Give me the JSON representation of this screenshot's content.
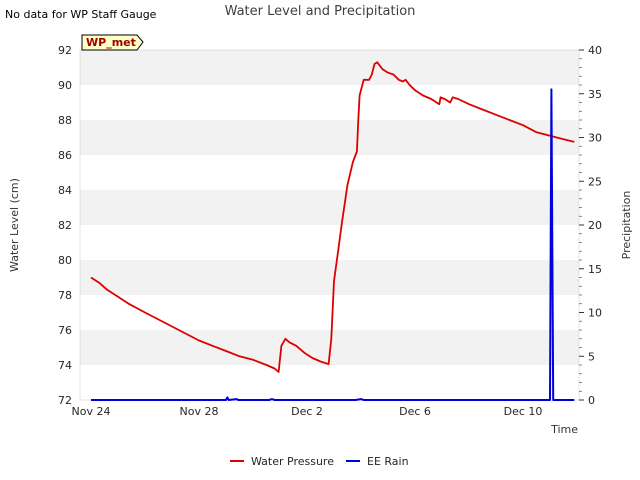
{
  "chart_data": {
    "type": "line",
    "title": "Water Level and Precipitation",
    "note": "No data for WP Staff Gauge",
    "station_label": "WP_met",
    "xlabel": "Time",
    "ylabel_left": "Water Level (cm)",
    "ylabel_right": "Precipitation",
    "x_ticks": [
      {
        "day": 0,
        "label": "Nov 24"
      },
      {
        "day": 4,
        "label": "Nov 28"
      },
      {
        "day": 8,
        "label": "Dec 2"
      },
      {
        "day": 12,
        "label": "Dec 6"
      },
      {
        "day": 16,
        "label": "Dec 10"
      }
    ],
    "x_range_days": [
      0,
      17.9
    ],
    "ylim_left": [
      72,
      92
    ],
    "left_ticks": [
      72,
      74,
      76,
      78,
      80,
      82,
      84,
      86,
      88,
      90,
      92
    ],
    "ylim_right": [
      0,
      40
    ],
    "right_ticks": [
      0,
      5,
      10,
      15,
      20,
      25,
      30,
      35,
      40
    ],
    "grid_bands": true,
    "legend_position": "bottom-center",
    "series": [
      {
        "name": "Water Pressure",
        "axis": "left",
        "color": "#dd0000",
        "points": [
          [
            0.0,
            79.0
          ],
          [
            0.3,
            78.7
          ],
          [
            0.6,
            78.3
          ],
          [
            1.0,
            77.9
          ],
          [
            1.4,
            77.5
          ],
          [
            2.0,
            77.0
          ],
          [
            2.5,
            76.6
          ],
          [
            3.0,
            76.2
          ],
          [
            3.5,
            75.8
          ],
          [
            4.0,
            75.4
          ],
          [
            4.5,
            75.1
          ],
          [
            5.0,
            74.8
          ],
          [
            5.5,
            74.5
          ],
          [
            6.0,
            74.3
          ],
          [
            6.5,
            74.0
          ],
          [
            6.8,
            73.8
          ],
          [
            6.95,
            73.6
          ],
          [
            7.05,
            75.1
          ],
          [
            7.2,
            75.5
          ],
          [
            7.35,
            75.3
          ],
          [
            7.6,
            75.1
          ],
          [
            7.9,
            74.7
          ],
          [
            8.2,
            74.4
          ],
          [
            8.5,
            74.2
          ],
          [
            8.7,
            74.1
          ],
          [
            8.8,
            74.05
          ],
          [
            8.9,
            75.5
          ],
          [
            9.0,
            78.8
          ],
          [
            9.15,
            80.5
          ],
          [
            9.3,
            82.2
          ],
          [
            9.5,
            84.3
          ],
          [
            9.7,
            85.6
          ],
          [
            9.85,
            86.2
          ],
          [
            9.9,
            88.0
          ],
          [
            9.95,
            89.4
          ],
          [
            10.1,
            90.3
          ],
          [
            10.3,
            90.3
          ],
          [
            10.4,
            90.6
          ],
          [
            10.5,
            91.2
          ],
          [
            10.6,
            91.3
          ],
          [
            10.8,
            90.9
          ],
          [
            11.0,
            90.7
          ],
          [
            11.2,
            90.6
          ],
          [
            11.4,
            90.3
          ],
          [
            11.55,
            90.2
          ],
          [
            11.65,
            90.3
          ],
          [
            11.8,
            90.0
          ],
          [
            12.0,
            89.7
          ],
          [
            12.3,
            89.4
          ],
          [
            12.6,
            89.2
          ],
          [
            12.9,
            88.9
          ],
          [
            12.95,
            89.3
          ],
          [
            13.1,
            89.2
          ],
          [
            13.3,
            89.0
          ],
          [
            13.4,
            89.3
          ],
          [
            13.6,
            89.2
          ],
          [
            14.0,
            88.9
          ],
          [
            14.5,
            88.6
          ],
          [
            15.0,
            88.3
          ],
          [
            15.5,
            88.0
          ],
          [
            16.0,
            87.7
          ],
          [
            16.5,
            87.3
          ],
          [
            17.0,
            87.1
          ],
          [
            17.5,
            86.9
          ],
          [
            17.9,
            86.75
          ]
        ]
      },
      {
        "name": "EE Rain",
        "axis": "right",
        "color": "#0000dd",
        "points": [
          [
            0.0,
            0
          ],
          [
            5.0,
            0
          ],
          [
            5.05,
            0.3
          ],
          [
            5.1,
            0
          ],
          [
            5.4,
            0.1
          ],
          [
            5.45,
            0
          ],
          [
            6.6,
            0
          ],
          [
            6.7,
            0.1
          ],
          [
            6.8,
            0
          ],
          [
            9.8,
            0
          ],
          [
            10.0,
            0.1
          ],
          [
            10.1,
            0
          ],
          [
            17.0,
            0
          ],
          [
            17.05,
            35.5
          ],
          [
            17.12,
            0
          ],
          [
            17.9,
            0
          ]
        ]
      }
    ]
  }
}
